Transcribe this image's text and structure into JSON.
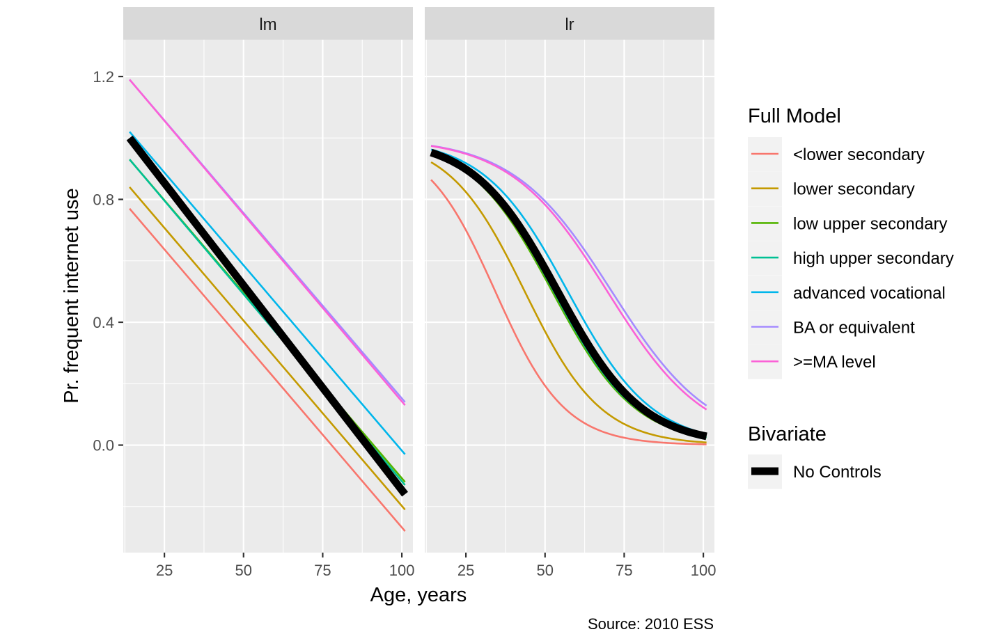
{
  "chart_data": {
    "type": "line",
    "caption": "Source: 2010 ESS",
    "xlabel": "Age, years",
    "ylabel": "Pr. frequent internet use",
    "x_ticks": [
      25,
      50,
      75,
      100
    ],
    "y_ticks": [
      "0.0",
      "0.4",
      "0.8",
      "1.2"
    ],
    "xlim": [
      12.0,
      103.5
    ],
    "ylim": [
      -0.35,
      1.32
    ],
    "grid": true,
    "legend_placement": "right",
    "legend": {
      "full_model_title": "Full Model",
      "bivariate_title": "Bivariate",
      "items": [
        {
          "label": "<lower secondary",
          "color": "#F8766D"
        },
        {
          "label": "lower secondary",
          "color": "#C49A00"
        },
        {
          "label": "low upper secondary",
          "color": "#53B400"
        },
        {
          "label": "high upper secondary",
          "color": "#00C094"
        },
        {
          "label": "advanced vocational",
          "color": "#00B6EB"
        },
        {
          "label": "BA or equivalent",
          "color": "#A58AFF"
        },
        {
          "label": ">=MA level",
          "color": "#FB61D7"
        }
      ],
      "bivariate_items": [
        {
          "label": "No Controls",
          "color": "#000000"
        }
      ]
    },
    "panels": [
      {
        "title": "lm",
        "model": "linear",
        "x": [
          14,
          101
        ],
        "series": [
          {
            "name": "<lower secondary",
            "values": [
              0.77,
              -0.28
            ]
          },
          {
            "name": "lower secondary",
            "values": [
              0.84,
              -0.21
            ]
          },
          {
            "name": "low upper secondary",
            "values": [
              0.93,
              -0.12
            ]
          },
          {
            "name": "high upper secondary",
            "values": [
              0.93,
              -0.13
            ]
          },
          {
            "name": "advanced vocational",
            "values": [
              1.02,
              -0.03
            ]
          },
          {
            "name": "BA or equivalent",
            "values": [
              1.19,
              0.14
            ]
          },
          {
            "name": ">=MA level",
            "values": [
              1.19,
              0.13
            ]
          },
          {
            "name": "No Controls",
            "values": [
              1.0,
              -0.16
            ]
          }
        ]
      },
      {
        "title": "lr",
        "model": "logistic",
        "x": [
          14,
          101
        ],
        "series": [
          {
            "name": "<lower secondary",
            "midpoint": 34.3,
            "slope": 0.091
          },
          {
            "name": "lower secondary",
            "midpoint": 43.6,
            "slope": 0.083
          },
          {
            "name": "low upper secondary",
            "midpoint": 52.3,
            "slope": 0.076
          },
          {
            "name": "high upper secondary",
            "midpoint": 52.8,
            "slope": 0.076
          },
          {
            "name": "advanced vocational",
            "midpoint": 57.2,
            "slope": 0.075
          },
          {
            "name": "BA or equivalent",
            "midpoint": 71.1,
            "slope": 0.064
          },
          {
            "name": ">=MA level",
            "midpoint": 69.7,
            "slope": 0.065
          },
          {
            "name": "No Controls",
            "midpoint": 54.0,
            "slope": 0.075
          }
        ]
      }
    ]
  }
}
